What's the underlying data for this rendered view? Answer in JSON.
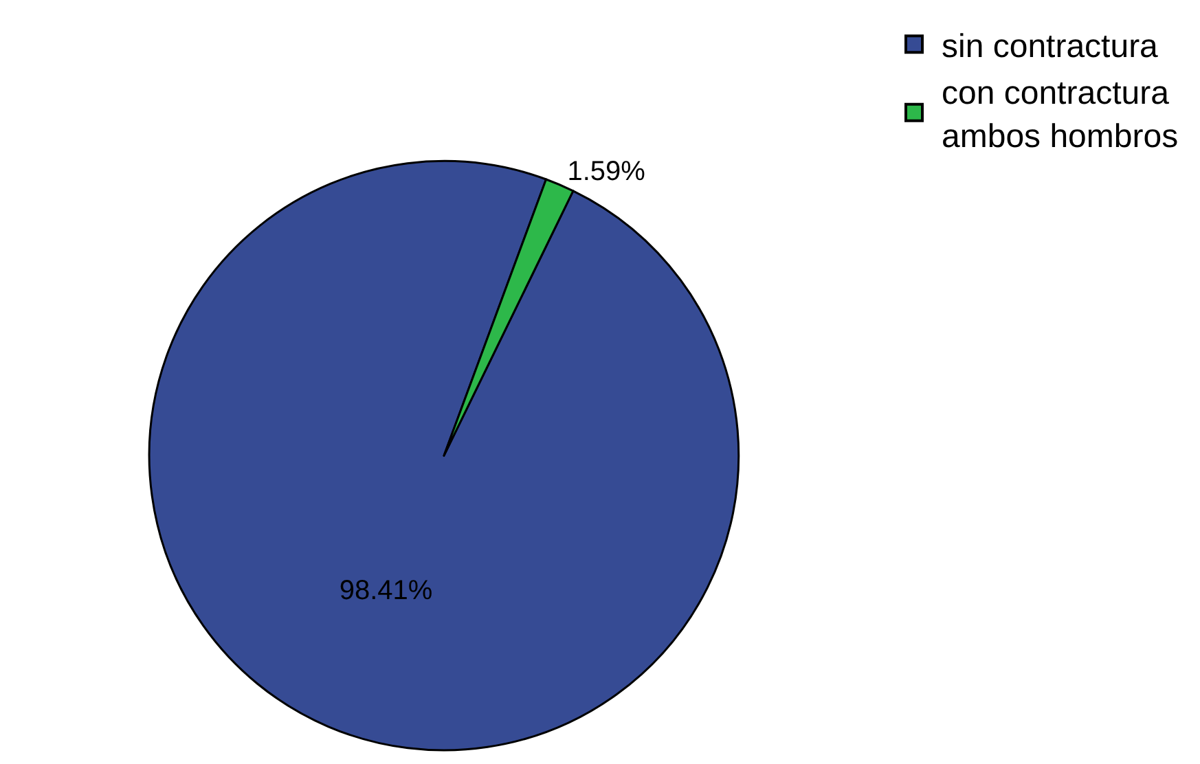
{
  "chart_data": {
    "type": "pie",
    "categories": [
      "sin contractura",
      "con contractura\nambos hombros"
    ],
    "values": [
      98.41,
      1.59
    ],
    "colors": [
      "#364b94",
      "#2db84a"
    ],
    "value_labels": [
      "98.41%",
      "1.59%"
    ],
    "legend": "top right"
  }
}
